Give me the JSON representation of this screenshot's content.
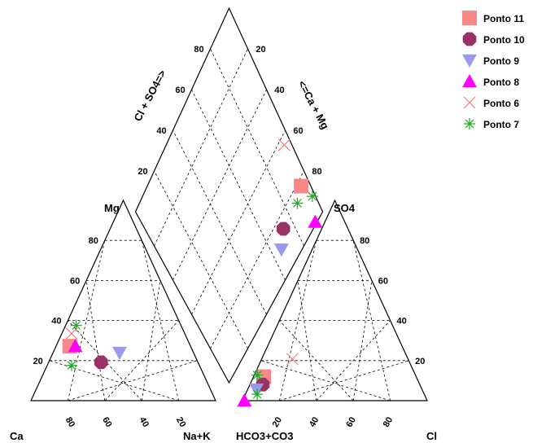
{
  "chart_data": {
    "type": "scatter",
    "subtype": "piper-diagram",
    "corner_labels": {
      "cation_left": "Ca",
      "cation_right": "Na+K",
      "cation_top": "Mg",
      "anion_left": "HCO3+CO3",
      "anion_right": "Cl",
      "anion_top": "SO4"
    },
    "diamond_axis_labels": {
      "upper_left": "Cl + SO4=>",
      "upper_right": "<=Ca + Mg"
    },
    "tick_labels": {
      "cation_mg": [
        "20",
        "40",
        "60",
        "80"
      ],
      "cation_ca": [
        "80",
        "60",
        "40",
        "20"
      ],
      "anion_cl": [
        "20",
        "40",
        "60",
        "80"
      ],
      "anion_so4": [
        "20",
        "40",
        "60",
        "80"
      ],
      "diamond_left": [
        "20",
        "40",
        "60",
        "80"
      ],
      "diamond_right": [
        "20",
        "40",
        "60",
        "80"
      ]
    },
    "grid": true,
    "legend_position": "top-right",
    "series": [
      {
        "name": "Ponto 11",
        "marker": "square",
        "color": "#f88888",
        "cations": {
          "Ca": 62,
          "Mg": 34,
          "NaK": 4
        },
        "anions": {
          "HCO3": 81,
          "SO4": 15,
          "Cl": 4
        }
      },
      {
        "name": "Ponto 10",
        "marker": "circle",
        "color": "#993366",
        "cations": {
          "Ca": 50,
          "Mg": 24,
          "NaK": 26
        },
        "anions": {
          "HCO3": 84,
          "SO4": 10,
          "Cl": 6
        }
      },
      {
        "name": "Ponto 9",
        "marker": "triangle-down",
        "color": "#9999ee",
        "cations": {
          "Ca": 37,
          "Mg": 30,
          "NaK": 33
        },
        "anions": {
          "HCO3": 89,
          "SO4": 7,
          "Cl": 4
        }
      },
      {
        "name": "Ponto 8",
        "marker": "triangle-up",
        "color": "#ff00ff",
        "cations": {
          "Ca": 59,
          "Mg": 34,
          "NaK": 7
        },
        "anions": {
          "HCO3": 99,
          "SO4": 0,
          "Cl": 1
        }
      },
      {
        "name": "Ponto 6",
        "marker": "x",
        "color": "#f08080",
        "cations": {
          "Ca": 57,
          "Mg": 42,
          "NaK": 1
        },
        "anions": {
          "HCO3": 60,
          "SO4": 26,
          "Cl": 14
        }
      },
      {
        "name": "Ponto 7",
        "marker": "star",
        "color": "#22aa22",
        "cations": [
          {
            "Ca": 52,
            "Mg": 47,
            "NaK": 1
          },
          {
            "Ca": 67,
            "Mg": 22,
            "NaK": 11
          }
        ],
        "anions": [
          {
            "HCO3": 90,
            "SO4": 4,
            "Cl": 6
          },
          {
            "HCO3": 84,
            "SO4": 16,
            "Cl": 0
          }
        ]
      }
    ]
  }
}
